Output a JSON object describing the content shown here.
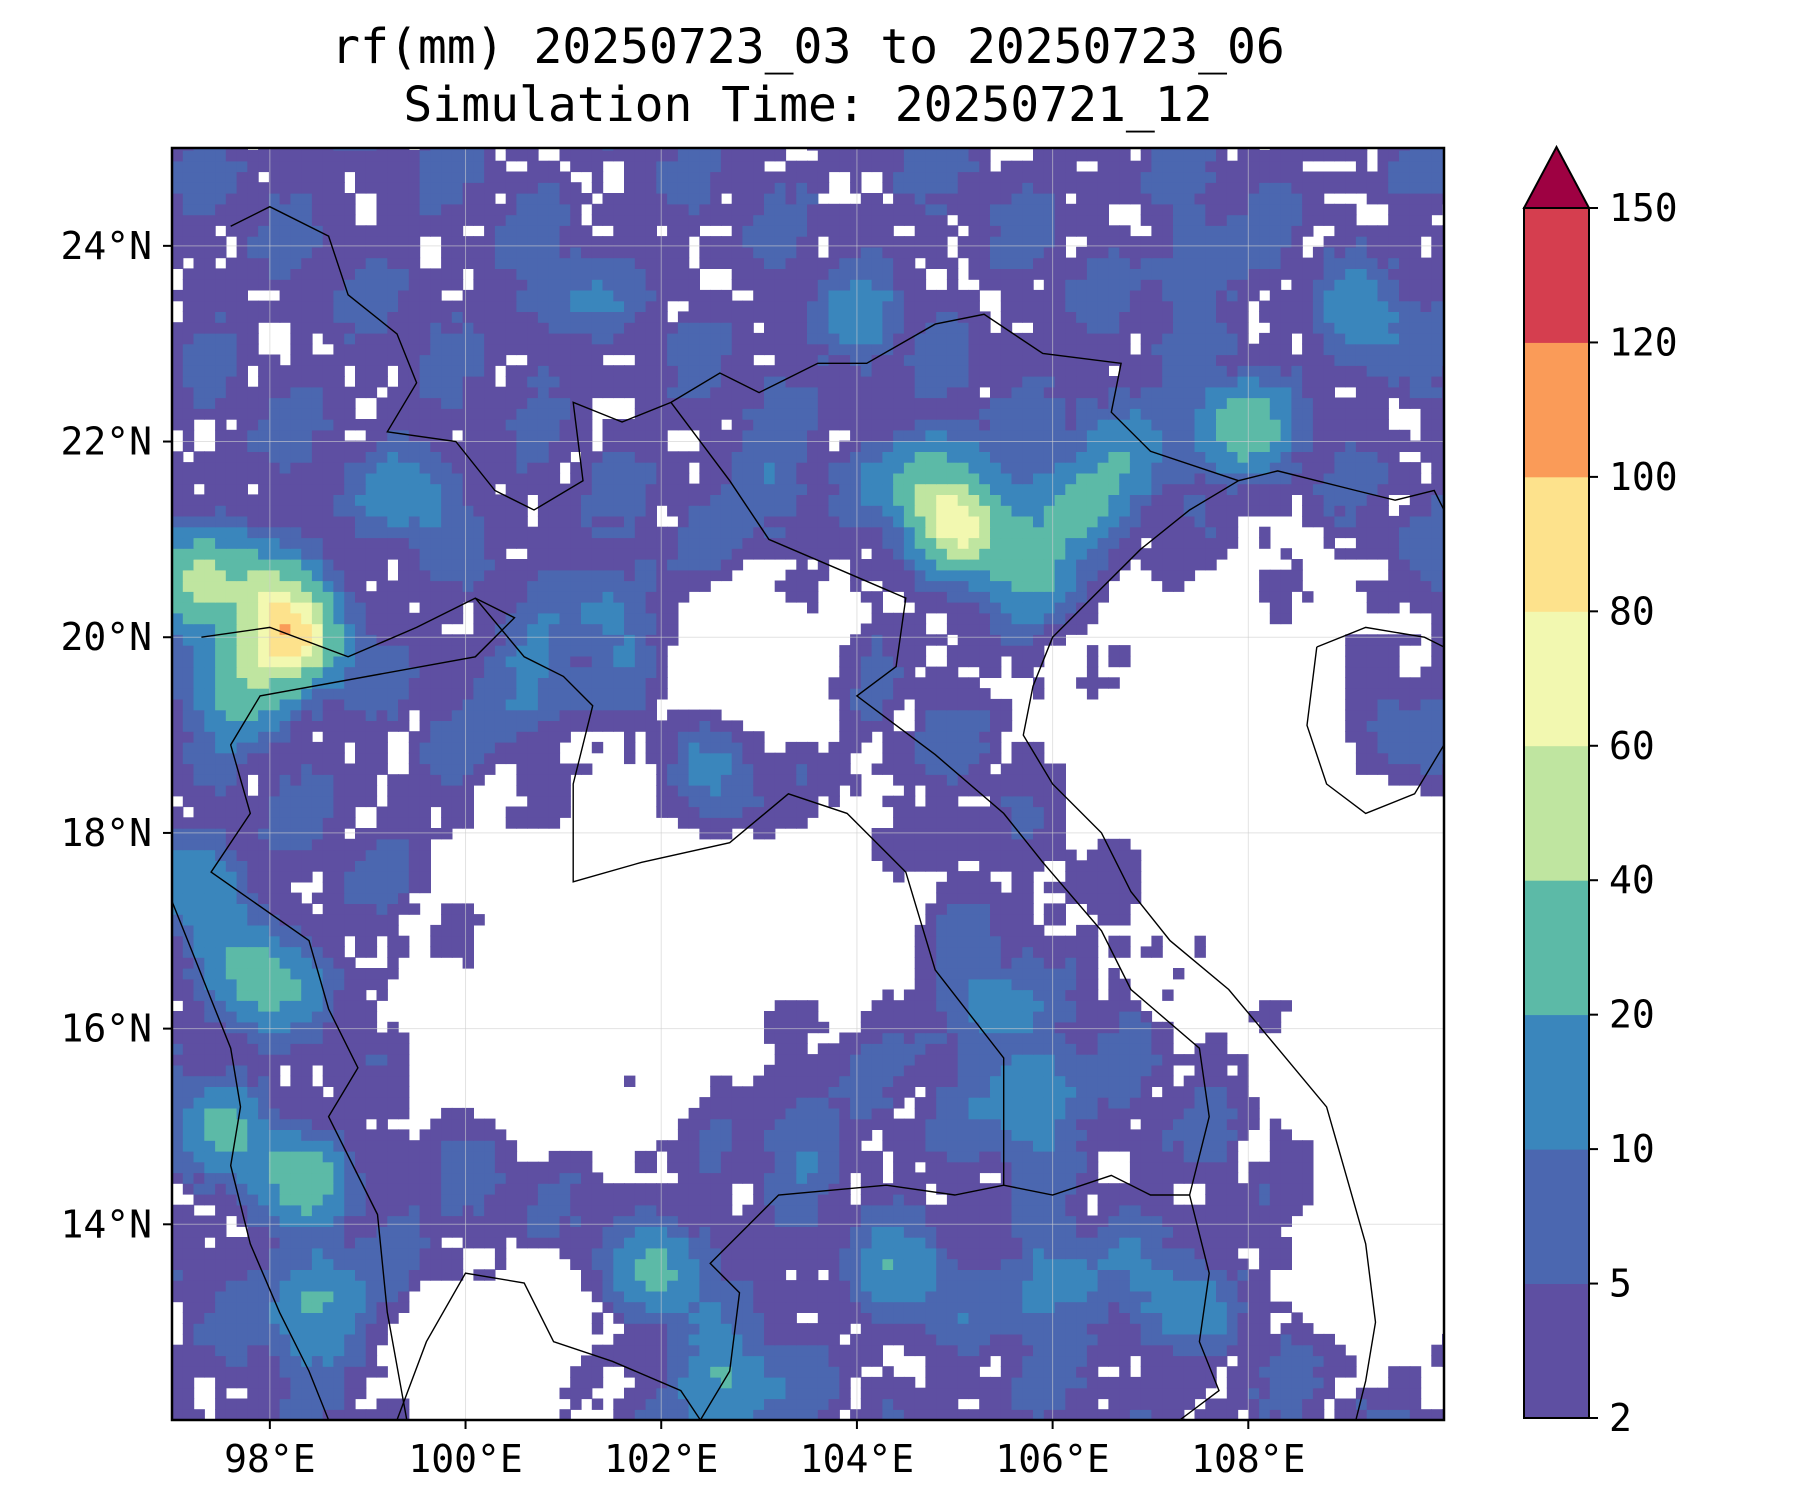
{
  "title": {
    "line1": "rf(mm) 20250723_03 to 20250723_06",
    "line2": "Simulation Time: 20250721_12"
  },
  "map": {
    "lon_range": [
      97,
      110
    ],
    "lat_range": [
      12,
      25
    ],
    "lon_ticks": [
      98,
      100,
      102,
      104,
      106,
      108
    ],
    "lon_tick_labels": [
      "98°E",
      "100°E",
      "102°E",
      "104°E",
      "106°E",
      "108°E"
    ],
    "lat_ticks": [
      14,
      16,
      18,
      20,
      22,
      24
    ],
    "lat_tick_labels": [
      "14°N",
      "16°N",
      "18°N",
      "20°N",
      "22°N",
      "24°N"
    ],
    "grid": true,
    "features": [
      "coastlines",
      "country-borders"
    ]
  },
  "colorbar": {
    "orientation": "vertical",
    "extend": "max",
    "levels": [
      2,
      5,
      10,
      20,
      40,
      60,
      80,
      100,
      120,
      150
    ],
    "tick_labels": [
      "2",
      "5",
      "10",
      "20",
      "40",
      "60",
      "80",
      "100",
      "120",
      "150"
    ],
    "colors": [
      "#5e4fa2",
      "#4b67b0",
      "#3a86bc",
      "#5cbaa7",
      "#bfe5a0",
      "#f2f8b0",
      "#fde28c",
      "#fa9b58",
      "#d53e4f"
    ],
    "extend_color": "#9e0142"
  },
  "chart_data": {
    "type": "heatmap",
    "title": "rf(mm) 20250723_03 to 20250723_06",
    "subtitle": "Simulation Time: 20250721_12",
    "xlabel": "",
    "ylabel": "",
    "xlim": [
      97,
      110
    ],
    "ylim": [
      12,
      25
    ],
    "value_range": [
      2,
      150
    ],
    "units": "mm",
    "rain_cells": [
      {
        "lon": 98.2,
        "lat": 20.0,
        "value": 65
      },
      {
        "lon": 97.8,
        "lat": 19.6,
        "value": 45
      },
      {
        "lon": 97.2,
        "lat": 20.5,
        "value": 40
      },
      {
        "lon": 98.0,
        "lat": 20.5,
        "value": 30
      },
      {
        "lon": 105.1,
        "lat": 21.2,
        "value": 55
      },
      {
        "lon": 104.8,
        "lat": 21.6,
        "value": 30
      },
      {
        "lon": 105.8,
        "lat": 20.8,
        "value": 25
      },
      {
        "lon": 106.2,
        "lat": 21.3,
        "value": 22
      },
      {
        "lon": 107.9,
        "lat": 22.1,
        "value": 25
      },
      {
        "lon": 106.8,
        "lat": 22.0,
        "value": 15
      },
      {
        "lon": 97.9,
        "lat": 16.5,
        "value": 25
      },
      {
        "lon": 98.3,
        "lat": 14.5,
        "value": 22
      },
      {
        "lon": 98.5,
        "lat": 13.2,
        "value": 25
      },
      {
        "lon": 97.3,
        "lat": 17.5,
        "value": 15
      },
      {
        "lon": 97.5,
        "lat": 15.0,
        "value": 15
      },
      {
        "lon": 102.0,
        "lat": 13.5,
        "value": 15
      },
      {
        "lon": 102.6,
        "lat": 12.3,
        "value": 22
      },
      {
        "lon": 100.6,
        "lat": 19.5,
        "value": 12
      },
      {
        "lon": 101.5,
        "lat": 20.3,
        "value": 10
      },
      {
        "lon": 102.5,
        "lat": 18.5,
        "value": 8
      },
      {
        "lon": 105.8,
        "lat": 15.3,
        "value": 20
      },
      {
        "lon": 105.3,
        "lat": 16.2,
        "value": 10
      },
      {
        "lon": 104.5,
        "lat": 13.5,
        "value": 12
      },
      {
        "lon": 106.0,
        "lat": 13.4,
        "value": 15
      },
      {
        "lon": 107.2,
        "lat": 13.2,
        "value": 10
      },
      {
        "lon": 104.0,
        "lat": 23.2,
        "value": 8
      },
      {
        "lon": 101.0,
        "lat": 23.5,
        "value": 6
      },
      {
        "lon": 107.5,
        "lat": 23.8,
        "value": 8
      },
      {
        "lon": 109.2,
        "lat": 23.2,
        "value": 10
      },
      {
        "lon": 109.5,
        "lat": 19.0,
        "value": 6
      },
      {
        "lon": 103.0,
        "lat": 21.5,
        "value": 8
      },
      {
        "lon": 99.5,
        "lat": 21.5,
        "value": 10
      },
      {
        "lon": 100.0,
        "lat": 14.5,
        "value": 6
      },
      {
        "lon": 103.5,
        "lat": 15.0,
        "value": 6
      }
    ]
  }
}
